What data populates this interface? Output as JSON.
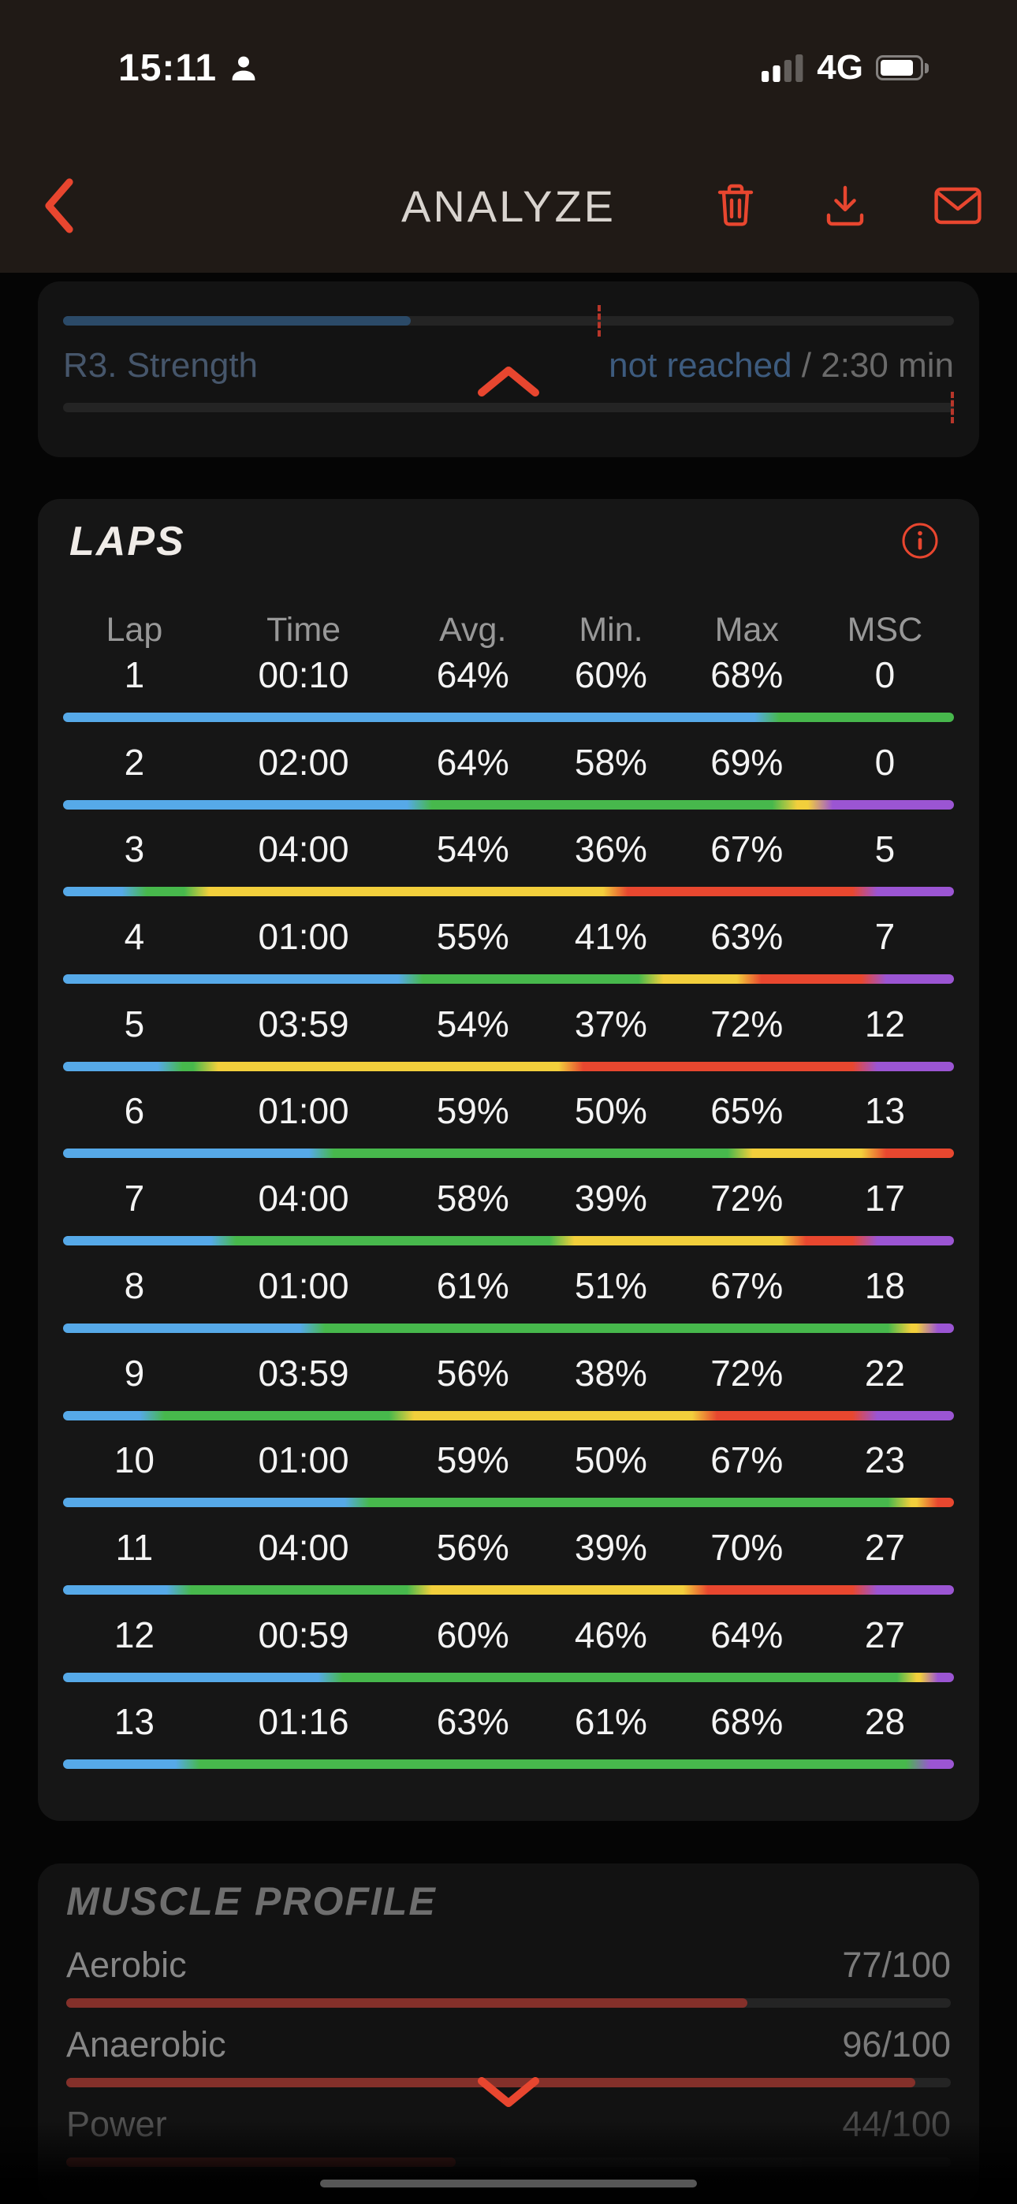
{
  "status_bar": {
    "time": "15:11",
    "network": "4G"
  },
  "header": {
    "title": "ANALYZE"
  },
  "previous_section": {
    "label": "R3. Strength",
    "status": "not reached",
    "separator": " / ",
    "duration": "2:30 min",
    "progress_pct": 39,
    "marker_pct": 60
  },
  "laps": {
    "title": "LAPS",
    "columns": [
      "Lap",
      "Time",
      "Avg.",
      "Min.",
      "Max",
      "MSC"
    ],
    "rows": [
      {
        "cells": [
          "1",
          "00:10",
          "64%",
          "60%",
          "68%",
          "0"
        ],
        "bar": [
          [
            "blue",
            79
          ],
          [
            "green",
            21
          ]
        ]
      },
      {
        "cells": [
          "2",
          "02:00",
          "64%",
          "58%",
          "69%",
          "0"
        ],
        "bar": [
          [
            "blue",
            40
          ],
          [
            "green",
            41
          ],
          [
            "yellow",
            4
          ],
          [
            "purple",
            15
          ]
        ]
      },
      {
        "cells": [
          "3",
          "04:00",
          "54%",
          "36%",
          "67%",
          "5"
        ],
        "bar": [
          [
            "blue",
            8
          ],
          [
            "green",
            7
          ],
          [
            "yellow",
            47
          ],
          [
            "red",
            28
          ],
          [
            "purple",
            10
          ]
        ]
      },
      {
        "cells": [
          "4",
          "01:00",
          "55%",
          "41%",
          "63%",
          "7"
        ],
        "bar": [
          [
            "blue",
            39
          ],
          [
            "green",
            27
          ],
          [
            "yellow",
            11
          ],
          [
            "red",
            14
          ],
          [
            "purple",
            9
          ]
        ]
      },
      {
        "cells": [
          "5",
          "03:59",
          "54%",
          "37%",
          "72%",
          "12"
        ],
        "bar": [
          [
            "blue",
            12
          ],
          [
            "green",
            4
          ],
          [
            "yellow",
            41
          ],
          [
            "red",
            33
          ],
          [
            "purple",
            10
          ]
        ]
      },
      {
        "cells": [
          "6",
          "01:00",
          "59%",
          "50%",
          "65%",
          "13"
        ],
        "bar": [
          [
            "blue",
            29
          ],
          [
            "green",
            47
          ],
          [
            "yellow",
            15
          ],
          [
            "red",
            9
          ]
        ]
      },
      {
        "cells": [
          "7",
          "04:00",
          "58%",
          "39%",
          "72%",
          "17"
        ],
        "bar": [
          [
            "blue",
            18
          ],
          [
            "green",
            38
          ],
          [
            "yellow",
            26
          ],
          [
            "red",
            8
          ],
          [
            "purple",
            10
          ]
        ]
      },
      {
        "cells": [
          "8",
          "01:00",
          "61%",
          "51%",
          "67%",
          "18"
        ],
        "bar": [
          [
            "blue",
            28
          ],
          [
            "green",
            66
          ],
          [
            "yellow",
            3
          ],
          [
            "purple",
            3
          ]
        ]
      },
      {
        "cells": [
          "9",
          "03:59",
          "56%",
          "38%",
          "72%",
          "22"
        ],
        "bar": [
          [
            "blue",
            10
          ],
          [
            "green",
            28
          ],
          [
            "yellow",
            34
          ],
          [
            "red",
            18
          ],
          [
            "purple",
            10
          ]
        ]
      },
      {
        "cells": [
          "10",
          "01:00",
          "59%",
          "50%",
          "67%",
          "23"
        ],
        "bar": [
          [
            "blue",
            33
          ],
          [
            "green",
            61
          ],
          [
            "yellow",
            3
          ],
          [
            "red",
            3
          ]
        ]
      },
      {
        "cells": [
          "11",
          "04:00",
          "56%",
          "39%",
          "70%",
          "27"
        ],
        "bar": [
          [
            "blue",
            13
          ],
          [
            "green",
            27
          ],
          [
            "yellow",
            31
          ],
          [
            "red",
            19
          ],
          [
            "purple",
            10
          ]
        ]
      },
      {
        "cells": [
          "12",
          "00:59",
          "60%",
          "46%",
          "64%",
          "27"
        ],
        "bar": [
          [
            "blue",
            30
          ],
          [
            "green",
            65
          ],
          [
            "yellow",
            2
          ],
          [
            "purple",
            3
          ]
        ]
      },
      {
        "cells": [
          "13",
          "01:16",
          "63%",
          "61%",
          "68%",
          "28"
        ],
        "bar": [
          [
            "blue",
            14
          ],
          [
            "green",
            82
          ],
          [
            "purple",
            4
          ]
        ]
      }
    ]
  },
  "muscle_profile": {
    "title": "MUSCLE PROFILE",
    "metrics": [
      {
        "label": "Aerobic",
        "value": "77/100",
        "pct": 77
      },
      {
        "label": "Anaerobic",
        "value": "96/100",
        "pct": 96
      },
      {
        "label": "Power",
        "value": "44/100",
        "pct": 44
      }
    ]
  },
  "colors": {
    "accent": "#e8462f",
    "segments": {
      "blue": "#56a9e8",
      "green": "#47b84c",
      "yellow": "#f2cf3c",
      "red": "#e8472f",
      "purple": "#9b55d3"
    },
    "muscle_bar": "#84302a",
    "prev_fill": "#2b4a68"
  }
}
